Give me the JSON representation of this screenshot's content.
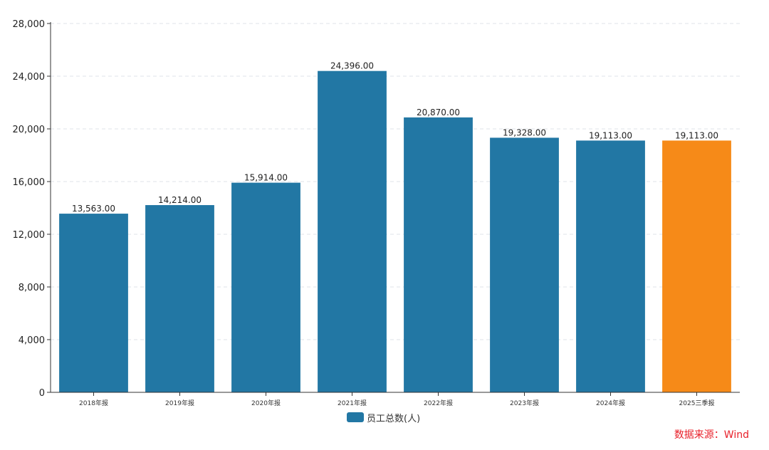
{
  "chart_data": {
    "type": "bar",
    "categories": [
      "2018年报",
      "2019年报",
      "2020年报",
      "2021年报",
      "2022年报",
      "2023年报",
      "2024年报",
      "2025三季报"
    ],
    "series": [
      {
        "name": "员工总数(人)",
        "values": [
          13563,
          14214,
          15914,
          24396,
          20870,
          19328,
          19113,
          19113
        ],
        "data_labels": [
          "13,563.00",
          "14,214.00",
          "15,914.00",
          "24,396.00",
          "20,870.00",
          "19,328.00",
          "19,113.00",
          "19,113.00"
        ]
      }
    ],
    "ylim": [
      0,
      28000
    ],
    "yticks": [
      0,
      4000,
      8000,
      12000,
      16000,
      20000,
      24000,
      28000
    ],
    "ytick_labels": [
      "0",
      "4,000",
      "8,000",
      "12,000",
      "16,000",
      "20,000",
      "24,000",
      "28,000"
    ],
    "grid": true,
    "legend_position": "bottom-center",
    "bar_colors": [
      "#2277a4",
      "#2277a4",
      "#2277a4",
      "#2277a4",
      "#2277a4",
      "#2277a4",
      "#2277a4",
      "#f68a18"
    ]
  },
  "legend": {
    "label": "员工总数(人)",
    "color": "#2277a4"
  },
  "source": {
    "text": "数据来源：Wind",
    "color": "#e8202a"
  }
}
